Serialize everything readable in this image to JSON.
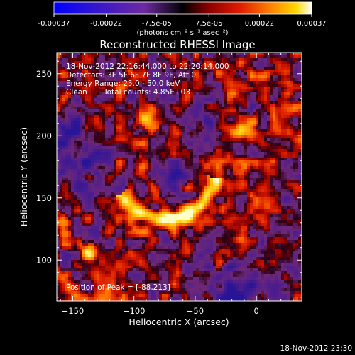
{
  "chart_data": {
    "type": "heatmap",
    "title": "Reconstructed RHESSI Image",
    "xlabel": "Heliocentric X (arcsec)",
    "ylabel": "Heliocentric Y (arcsec)",
    "xlim": [
      -163,
      37
    ],
    "ylim": [
      67,
      267
    ],
    "x_ticks": [
      -150,
      -100,
      -50,
      0
    ],
    "y_ticks": [
      100,
      150,
      200,
      250
    ],
    "colormap": "blue-purple-red-orange-yellow-white",
    "colorbar": {
      "range": [
        -0.00037,
        0.00037
      ],
      "tick_labels": [
        "-0.00037",
        "-0.00022",
        "-7.5e-05",
        "7.5e-05",
        "0.00022",
        "0.00037"
      ],
      "unit_label": "(photons cm⁻² s⁻¹ asec⁻²)"
    },
    "annotations": {
      "time_range": "18-Nov-2012 22:16:44.000 to 22:20:14.000",
      "detectors": "Detectors: 3F 5F 6F 7F 8F 9F, Att 0",
      "energy_range": "Energy Range: 25.0 - 50.0 keV",
      "clean": "Clean",
      "total_counts": "Total counts: 4.85E+03",
      "peak_position": "Position of Peak = [-88,213]"
    },
    "peak": {
      "x": -88,
      "y": 213
    },
    "features": [
      {
        "kind": "arc",
        "x": -60,
        "y": 148,
        "description": "bright curved ridge"
      },
      {
        "kind": "blob",
        "x": -88,
        "y": 213
      },
      {
        "kind": "blob",
        "x": -10,
        "y": 205
      },
      {
        "kind": "blob",
        "x": -135,
        "y": 108
      }
    ]
  },
  "footer": {
    "timestamp": "18-Nov-2012 23:30"
  }
}
